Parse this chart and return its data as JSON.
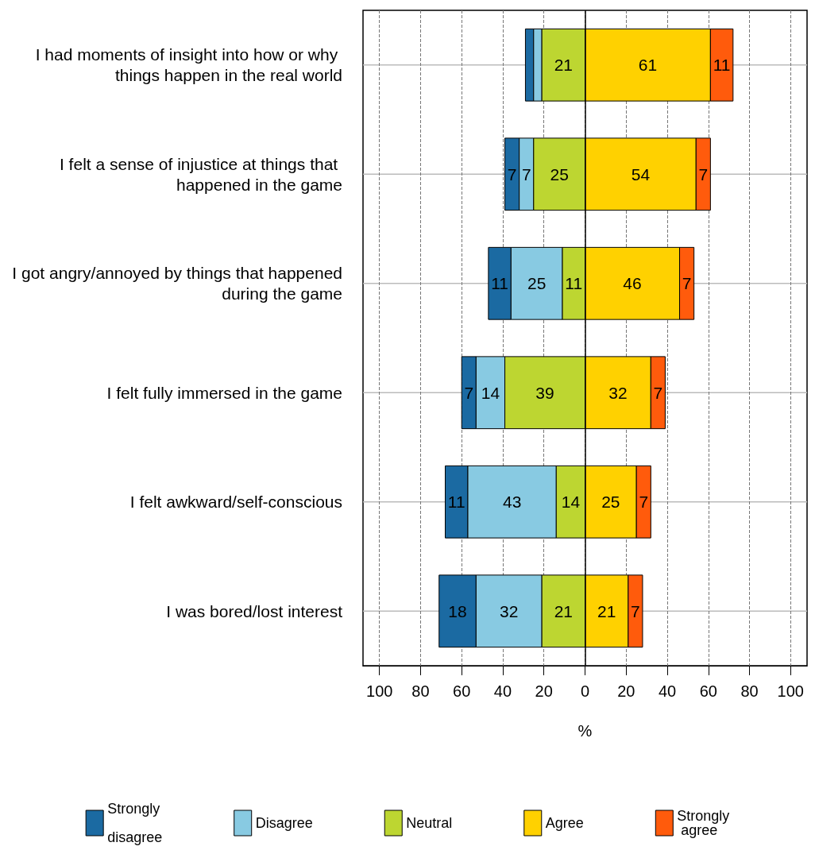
{
  "chart_data": {
    "type": "bar",
    "orientation": "horizontal",
    "xlabel": "%",
    "categories": [
      "I had moments of insight into how or why things happen in the real world",
      "I felt a sense of injustice at things that happened in the game",
      "I got angry/annoyed by things that happened during the game",
      "I felt fully immersed in the game",
      "I felt awkward/self-conscious",
      "I was bored/lost interest"
    ],
    "series": [
      {
        "name": "Strongly disagree",
        "color": "#1b6aa2",
        "values": [
          4,
          7,
          11,
          7,
          11,
          18
        ],
        "base": [
          -29,
          -39,
          -47,
          -60,
          -68,
          -71
        ],
        "value_labels": [
          null,
          "7",
          "11",
          "7",
          "11",
          "18"
        ]
      },
      {
        "name": "Disagree",
        "color": "#88cae2",
        "values": [
          4,
          7,
          25,
          14,
          43,
          32
        ],
        "base": [
          -25,
          -32,
          -36,
          -53,
          -57,
          -53
        ],
        "value_labels": [
          null,
          "7",
          "25",
          "14",
          "43",
          "32"
        ]
      },
      {
        "name": "Neutral",
        "color": "#bdd631",
        "values": [
          21,
          25,
          11,
          39,
          14,
          21
        ],
        "base": [
          -21,
          -25,
          -11,
          -39,
          -14,
          -21
        ],
        "value_labels": [
          "21",
          "25",
          "11",
          "39",
          "14",
          "21"
        ]
      },
      {
        "name": "Agree",
        "color": "#ffd100",
        "values": [
          61,
          54,
          46,
          32,
          25,
          21
        ],
        "base": [
          0,
          0,
          0,
          0,
          0,
          0
        ],
        "value_labels": [
          "61",
          "54",
          "46",
          "32",
          "25",
          "21"
        ]
      },
      {
        "name": "Strongly agree",
        "color": "#ff5b0c",
        "values": [
          11,
          7,
          7,
          7,
          7,
          7
        ],
        "base": [
          61,
          54,
          46,
          32,
          25,
          21
        ],
        "value_labels": [
          "11",
          "7",
          "7",
          "7",
          "7",
          "7"
        ]
      }
    ],
    "xlim": [
      -108,
      108
    ],
    "xticks": [
      {
        "value": -100,
        "label": "100"
      },
      {
        "value": -80,
        "label": "80"
      },
      {
        "value": -60,
        "label": "60"
      },
      {
        "value": -40,
        "label": "40"
      },
      {
        "value": -20,
        "label": "20"
      },
      0,
      20,
      40,
      60,
      80,
      100
    ],
    "ref_lines": [
      {
        "axis": "x",
        "value": 0,
        "color": "#000000",
        "line_style": "solid"
      }
    ],
    "grid": true,
    "line_style": "dashed",
    "legend": "bottom"
  }
}
